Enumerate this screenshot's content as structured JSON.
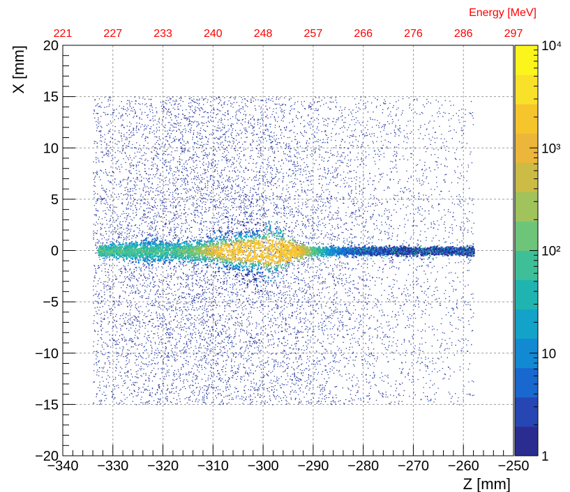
{
  "chart_data": {
    "type": "heatmap",
    "title": "",
    "xlabel": "Z [mm]",
    "ylabel": "X [mm]",
    "x_range": [
      -340,
      -250
    ],
    "y_range": [
      -20,
      20
    ],
    "x_ticks": [
      -340,
      -330,
      -320,
      -310,
      -300,
      -290,
      -280,
      -270,
      -260,
      -250
    ],
    "x_tick_labels": [
      "−340",
      "−330",
      "−320",
      "−310",
      "−300",
      "−290",
      "−280",
      "−270",
      "−260",
      "−250"
    ],
    "y_ticks": [
      20,
      15,
      10,
      5,
      0,
      -5,
      -10,
      -15,
      -20
    ],
    "y_tick_labels": [
      "20",
      "15",
      "10",
      "5",
      "0",
      "−5",
      "−10",
      "−15",
      "−20"
    ],
    "grid": true,
    "top_axis": {
      "label": "Energy [MeV]",
      "color": "#ff0000",
      "z_positions": [
        -340,
        -330,
        -320,
        -310,
        -300,
        -290,
        -280,
        -270,
        -260,
        -250
      ],
      "tick_labels": [
        "221",
        "227",
        "233",
        "240",
        "248",
        "257",
        "266",
        "276",
        "286",
        "297"
      ]
    },
    "color_scale": {
      "type": "log",
      "range": [
        1,
        10000
      ],
      "tick_labels": [
        "1",
        "10",
        "10²",
        "10³",
        "10⁴"
      ],
      "tick_values": [
        1,
        10,
        100,
        1000,
        10000
      ],
      "palette": [
        "#2a2d8f",
        "#2646b4",
        "#1868cf",
        "#1289d3",
        "#13a2c8",
        "#1fb4b0",
        "#3ebf97",
        "#6dc57a",
        "#a0c35c",
        "#ccbb45",
        "#ecb63a",
        "#f6c52c",
        "#f9e12a",
        "#fbf51c"
      ]
    },
    "data_region": {
      "z_range": [
        -334,
        -258
      ],
      "x_range": [
        -15,
        15
      ]
    },
    "core": {
      "z_center": -300,
      "x_center": 0,
      "z_extent": [
        -333,
        -283
      ],
      "peak_count": 1500
    }
  }
}
